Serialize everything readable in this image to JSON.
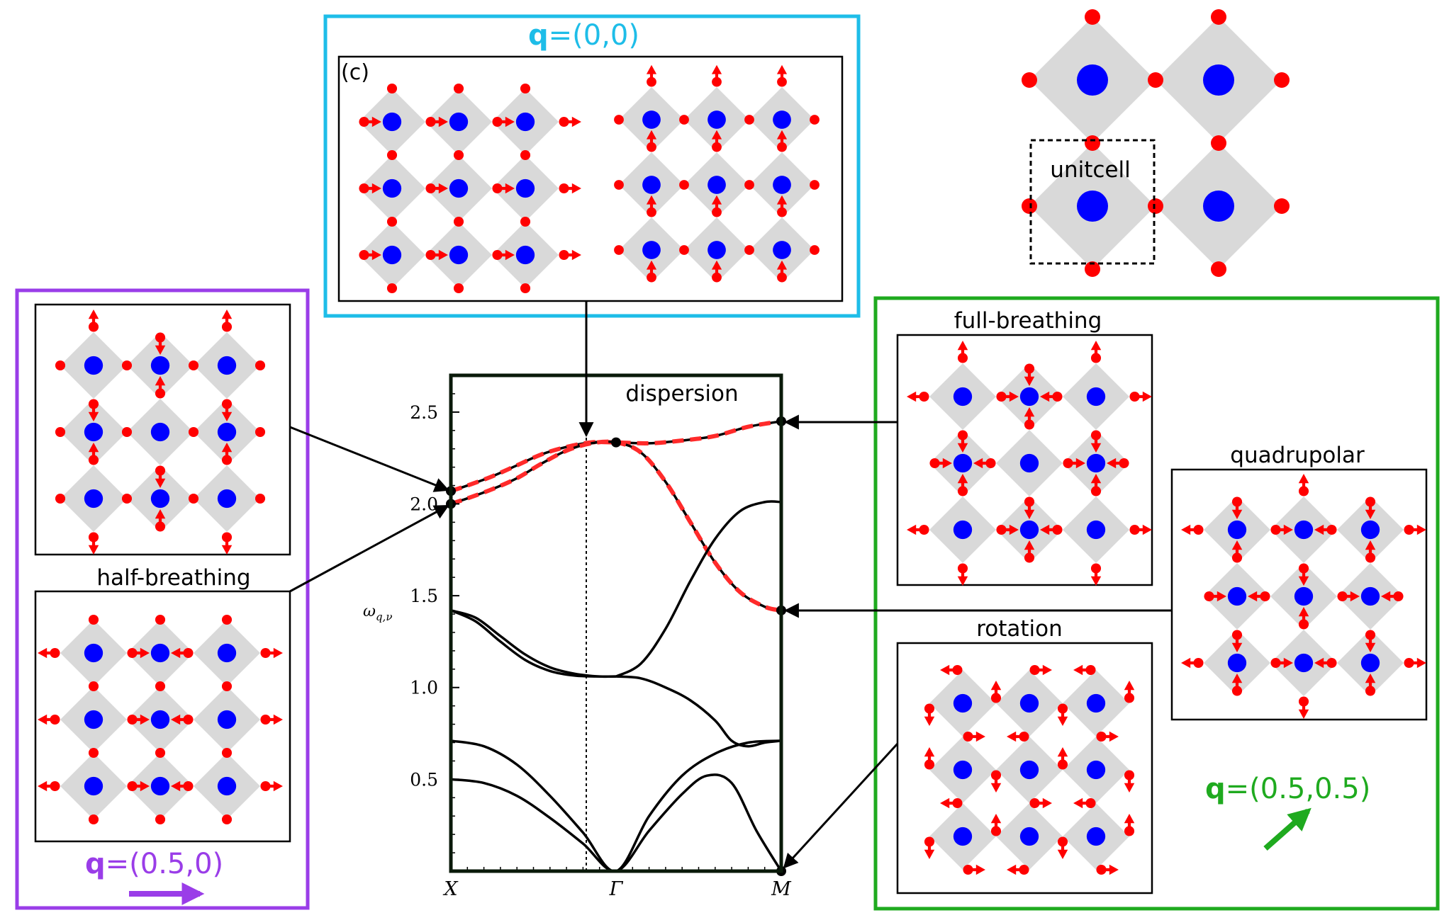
{
  "colors": {
    "cyan": "#1ebde8",
    "purple": "#9a3de8",
    "green": "#1faa1f",
    "oxygen": "#ff0000",
    "metal": "#0000ff",
    "octahedron": "#d9d9d9",
    "dashed_band": "#ff2a2a",
    "black": "#000000"
  },
  "boxes": {
    "q00": {
      "title_bold": "q",
      "title_rest": "=(0,0)",
      "panel_label": "(c)"
    },
    "q050": {
      "title_bold": "q",
      "title_rest": "=(0.5,0)",
      "mode_label": "half-breathing"
    },
    "q0505": {
      "title_bold": "q",
      "title_rest": "=(0.5,0.5)",
      "full_breathing_label": "full-breathing",
      "quadrupolar_label": "quadrupolar",
      "rotation_label": "rotation"
    }
  },
  "unitcell": {
    "label": "unitcell"
  },
  "chart_data": {
    "type": "line",
    "title": "dispersion",
    "ylabel": "ω_{q,ν}",
    "ylim": [
      0,
      2.7
    ],
    "yticks": [
      "0.5",
      "1.0",
      "1.5",
      "2.0",
      "2.5"
    ],
    "ytick_values": [
      0.5,
      1.0,
      1.5,
      2.0,
      2.5
    ],
    "xticks": [
      "X",
      "Γ",
      "M"
    ],
    "x_path_positions": [
      0,
      1,
      2
    ],
    "series": [
      {
        "x": [
          0,
          0.1,
          0.25,
          0.4,
          0.55,
          0.7,
          0.85,
          1.0,
          1.2,
          1.4,
          1.6,
          1.8,
          2.0
        ],
        "y": [
          2.07,
          2.1,
          2.15,
          2.21,
          2.27,
          2.31,
          2.335,
          2.335,
          2.33,
          2.345,
          2.37,
          2.42,
          2.45
        ],
        "dashed": true
      },
      {
        "x": [
          0,
          0.1,
          0.25,
          0.4,
          0.55,
          0.7,
          0.85,
          1.0,
          1.15,
          1.3,
          1.45,
          1.6,
          1.75,
          1.9,
          2.0
        ],
        "y": [
          2.0,
          2.03,
          2.08,
          2.14,
          2.22,
          2.29,
          2.33,
          2.335,
          2.28,
          2.12,
          1.9,
          1.68,
          1.52,
          1.44,
          1.42
        ],
        "dashed": true
      },
      {
        "x": [
          1.0,
          1.15,
          1.3,
          1.45,
          1.6,
          1.75,
          1.9,
          2.0
        ],
        "y": [
          1.06,
          1.13,
          1.32,
          1.58,
          1.81,
          1.96,
          2.01,
          2.01
        ]
      },
      {
        "x": [
          0,
          0.15,
          0.3,
          0.45,
          0.6,
          0.75,
          0.9,
          1.0,
          1.15,
          1.3,
          1.45,
          1.6,
          1.7,
          1.8,
          1.9,
          2.0
        ],
        "y": [
          1.42,
          1.38,
          1.28,
          1.18,
          1.11,
          1.075,
          1.06,
          1.06,
          1.05,
          1.0,
          0.93,
          0.82,
          0.71,
          0.68,
          0.7,
          0.71
        ]
      },
      {
        "x": [
          0,
          0.15,
          0.3,
          0.45,
          0.6,
          0.75,
          0.9,
          1.0
        ],
        "y": [
          1.42,
          1.36,
          1.25,
          1.15,
          1.09,
          1.065,
          1.06,
          1.06
        ]
      },
      {
        "x": [
          0,
          0.2,
          0.4,
          0.6,
          0.8,
          1.0,
          1.2,
          1.4,
          1.6,
          1.8,
          2.0
        ],
        "y": [
          0.71,
          0.68,
          0.58,
          0.41,
          0.21,
          0.0,
          0.3,
          0.52,
          0.64,
          0.7,
          0.71
        ]
      },
      {
        "x": [
          0,
          0.2,
          0.4,
          0.6,
          0.8,
          1.0,
          1.2,
          1.4,
          1.55,
          1.7,
          1.85,
          2.0
        ],
        "y": [
          0.5,
          0.48,
          0.41,
          0.29,
          0.15,
          0.0,
          0.22,
          0.42,
          0.52,
          0.48,
          0.22,
          0.0
        ]
      }
    ],
    "markers": [
      {
        "x": 0,
        "y": 2.07
      },
      {
        "x": 0,
        "y": 2.0
      },
      {
        "x": 1,
        "y": 2.335
      },
      {
        "x": 2,
        "y": 2.45
      },
      {
        "x": 2,
        "y": 1.42
      },
      {
        "x": 2,
        "y": 0.0
      }
    ]
  }
}
